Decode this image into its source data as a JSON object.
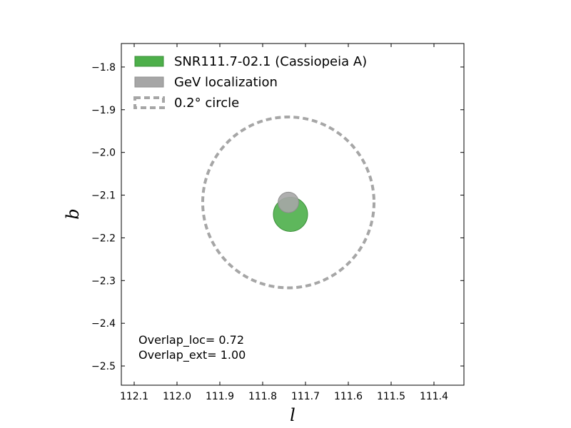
{
  "chart_data": {
    "type": "scatter",
    "title": "",
    "xlabel": "l",
    "ylabel": "b",
    "xlim": [
      112.13,
      111.33
    ],
    "ylim": [
      -2.545,
      -1.745
    ],
    "x_inverted": true,
    "xticks": [
      112.1,
      112.0,
      111.9,
      111.8,
      111.7,
      111.6,
      111.5,
      111.4
    ],
    "xtick_labels": [
      "112.1",
      "112.0",
      "111.9",
      "111.8",
      "111.7",
      "111.6",
      "111.5",
      "111.4"
    ],
    "yticks": [
      -1.8,
      -1.9,
      -2.0,
      -2.1,
      -2.2,
      -2.3,
      -2.4,
      -2.5
    ],
    "ytick_labels": [
      "−1.8",
      "−1.9",
      "−2.0",
      "−2.1",
      "−2.2",
      "−2.3",
      "−2.4",
      "−2.5"
    ],
    "grid": false,
    "legend_position": "top-left",
    "series": [
      {
        "name": "SNR111.7-02.1 (Cassiopeia A)",
        "shape": "filled-circle",
        "center": [
          111.735,
          -2.145
        ],
        "radius": 0.04,
        "color": "#4daf4a"
      },
      {
        "name": "GeV localization",
        "shape": "filled-circle",
        "center": [
          111.74,
          -2.117
        ],
        "radius": 0.024,
        "color": "#a6a6a6"
      },
      {
        "name": "0.2° circle",
        "shape": "dashed-circle",
        "center": [
          111.74,
          -2.117
        ],
        "radius": 0.2,
        "color": "#a6a6a6"
      }
    ],
    "annotations": [
      "Overlap_loc= 0.72",
      "Overlap_ext= 1.00"
    ]
  }
}
